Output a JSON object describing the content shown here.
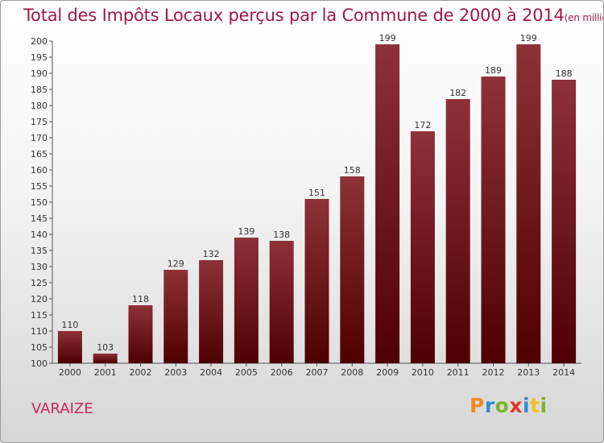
{
  "title": "Total des Impôts Locaux perçus par la Commune de 2000 à 2014",
  "title_unit": "(en milliers d'€)",
  "commune": "VARAIZE",
  "logo": {
    "letters": [
      "P",
      "r",
      "o",
      "x",
      "i",
      "t",
      "i"
    ],
    "colors": [
      "#f08a1e",
      "#2f8fd6",
      "#7ab42c",
      "#e33a2a",
      "#2f8fd6",
      "#f0c21e",
      "#7ab42c"
    ]
  },
  "colors": {
    "bar_top": "#8e3138",
    "bar_bottom": "#4e0000",
    "title": "#a0184a"
  },
  "chart_data": {
    "type": "bar",
    "categories": [
      "2000",
      "2001",
      "2002",
      "2003",
      "2004",
      "2005",
      "2006",
      "2007",
      "2008",
      "2009",
      "2010",
      "2011",
      "2012",
      "2013",
      "2014"
    ],
    "values": [
      110,
      103,
      118,
      129,
      132,
      139,
      138,
      151,
      158,
      199,
      172,
      182,
      189,
      199,
      188
    ],
    "value_labels": [
      "110",
      "103",
      "118",
      "129",
      "132",
      "139",
      "138",
      "151",
      "158",
      "199",
      "172",
      "182",
      "189",
      "199",
      "188"
    ],
    "ylim": [
      100,
      200
    ],
    "yticks": [
      100,
      105,
      110,
      115,
      120,
      125,
      130,
      135,
      140,
      145,
      150,
      155,
      160,
      165,
      170,
      175,
      180,
      185,
      190,
      195,
      200
    ],
    "ytick_labels": [
      "100",
      "105",
      "110",
      "115",
      "120",
      "125",
      "130",
      "135",
      "140",
      "145",
      "150",
      "155",
      "160",
      "165",
      "170",
      "175",
      "180",
      "185",
      "190",
      "195",
      "200"
    ],
    "grid": false,
    "legend": "none"
  }
}
